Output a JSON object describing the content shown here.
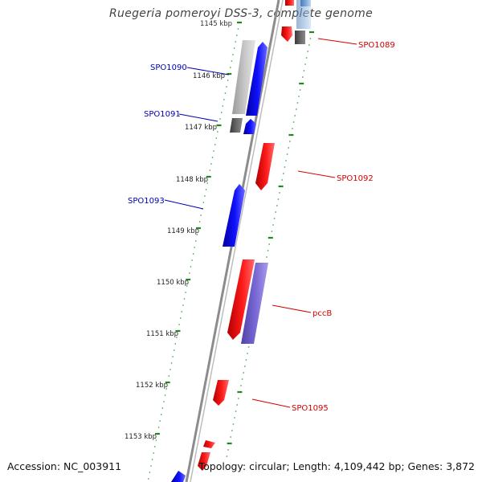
{
  "title": "Ruegeria pomeroyi DSS-3, complete genome",
  "footer": {
    "accession": "Accession: NC_003911",
    "topology": "Topology: circular; Length: 4,109,442 bp; Genes: 3,872"
  },
  "colors": {
    "backbone": "#8a8a8a",
    "ticks": "#1a8a1a",
    "forward_label": "#d40000",
    "reverse_label": "#0000b4"
  },
  "diagram_data": {
    "scale_labels": [
      "1145 kbp",
      "1146 kbp",
      "1147 kbp",
      "1148 kbp",
      "1149 kbp",
      "1150 kbp",
      "1151 kbp",
      "1152 kbp",
      "1153 kbp"
    ],
    "gene_labels": [
      {
        "name": "SPO1089",
        "strand": "forward"
      },
      {
        "name": "SPO1090",
        "strand": "reverse"
      },
      {
        "name": "SPO1091",
        "strand": "reverse"
      },
      {
        "name": "SPO1092",
        "strand": "forward"
      },
      {
        "name": "SPO1093",
        "strand": "reverse"
      },
      {
        "name": "pccB",
        "strand": "forward"
      },
      {
        "name": "SPO1095",
        "strand": "forward"
      }
    ]
  }
}
